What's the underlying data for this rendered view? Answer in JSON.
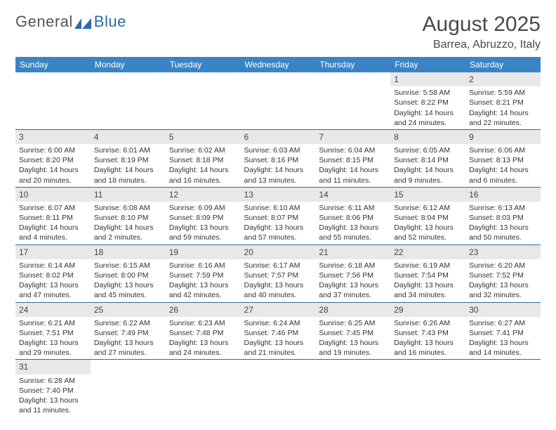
{
  "logo": {
    "general": "General",
    "blue": "Blue"
  },
  "title": "August 2025",
  "location": "Barrea, Abruzzo, Italy",
  "daysOfWeek": [
    "Sunday",
    "Monday",
    "Tuesday",
    "Wednesday",
    "Thursday",
    "Friday",
    "Saturday"
  ],
  "colors": {
    "header_bg": "#3b84c4",
    "header_text": "#ffffff",
    "daynum_bg": "#e8e8e8",
    "border": "#2a6ca8",
    "title_color": "#4a4a4a",
    "logo_gray": "#555555",
    "logo_blue": "#2a6ca8"
  },
  "weeks": [
    [
      null,
      null,
      null,
      null,
      null,
      {
        "n": "1",
        "sr": "Sunrise: 5:58 AM",
        "ss": "Sunset: 8:22 PM",
        "d1": "Daylight: 14 hours",
        "d2": "and 24 minutes."
      },
      {
        "n": "2",
        "sr": "Sunrise: 5:59 AM",
        "ss": "Sunset: 8:21 PM",
        "d1": "Daylight: 14 hours",
        "d2": "and 22 minutes."
      }
    ],
    [
      {
        "n": "3",
        "sr": "Sunrise: 6:00 AM",
        "ss": "Sunset: 8:20 PM",
        "d1": "Daylight: 14 hours",
        "d2": "and 20 minutes."
      },
      {
        "n": "4",
        "sr": "Sunrise: 6:01 AM",
        "ss": "Sunset: 8:19 PM",
        "d1": "Daylight: 14 hours",
        "d2": "and 18 minutes."
      },
      {
        "n": "5",
        "sr": "Sunrise: 6:02 AM",
        "ss": "Sunset: 8:18 PM",
        "d1": "Daylight: 14 hours",
        "d2": "and 16 minutes."
      },
      {
        "n": "6",
        "sr": "Sunrise: 6:03 AM",
        "ss": "Sunset: 8:16 PM",
        "d1": "Daylight: 14 hours",
        "d2": "and 13 minutes."
      },
      {
        "n": "7",
        "sr": "Sunrise: 6:04 AM",
        "ss": "Sunset: 8:15 PM",
        "d1": "Daylight: 14 hours",
        "d2": "and 11 minutes."
      },
      {
        "n": "8",
        "sr": "Sunrise: 6:05 AM",
        "ss": "Sunset: 8:14 PM",
        "d1": "Daylight: 14 hours",
        "d2": "and 9 minutes."
      },
      {
        "n": "9",
        "sr": "Sunrise: 6:06 AM",
        "ss": "Sunset: 8:13 PM",
        "d1": "Daylight: 14 hours",
        "d2": "and 6 minutes."
      }
    ],
    [
      {
        "n": "10",
        "sr": "Sunrise: 6:07 AM",
        "ss": "Sunset: 8:11 PM",
        "d1": "Daylight: 14 hours",
        "d2": "and 4 minutes."
      },
      {
        "n": "11",
        "sr": "Sunrise: 6:08 AM",
        "ss": "Sunset: 8:10 PM",
        "d1": "Daylight: 14 hours",
        "d2": "and 2 minutes."
      },
      {
        "n": "12",
        "sr": "Sunrise: 6:09 AM",
        "ss": "Sunset: 8:09 PM",
        "d1": "Daylight: 13 hours",
        "d2": "and 59 minutes."
      },
      {
        "n": "13",
        "sr": "Sunrise: 6:10 AM",
        "ss": "Sunset: 8:07 PM",
        "d1": "Daylight: 13 hours",
        "d2": "and 57 minutes."
      },
      {
        "n": "14",
        "sr": "Sunrise: 6:11 AM",
        "ss": "Sunset: 8:06 PM",
        "d1": "Daylight: 13 hours",
        "d2": "and 55 minutes."
      },
      {
        "n": "15",
        "sr": "Sunrise: 6:12 AM",
        "ss": "Sunset: 8:04 PM",
        "d1": "Daylight: 13 hours",
        "d2": "and 52 minutes."
      },
      {
        "n": "16",
        "sr": "Sunrise: 6:13 AM",
        "ss": "Sunset: 8:03 PM",
        "d1": "Daylight: 13 hours",
        "d2": "and 50 minutes."
      }
    ],
    [
      {
        "n": "17",
        "sr": "Sunrise: 6:14 AM",
        "ss": "Sunset: 8:02 PM",
        "d1": "Daylight: 13 hours",
        "d2": "and 47 minutes."
      },
      {
        "n": "18",
        "sr": "Sunrise: 6:15 AM",
        "ss": "Sunset: 8:00 PM",
        "d1": "Daylight: 13 hours",
        "d2": "and 45 minutes."
      },
      {
        "n": "19",
        "sr": "Sunrise: 6:16 AM",
        "ss": "Sunset: 7:59 PM",
        "d1": "Daylight: 13 hours",
        "d2": "and 42 minutes."
      },
      {
        "n": "20",
        "sr": "Sunrise: 6:17 AM",
        "ss": "Sunset: 7:57 PM",
        "d1": "Daylight: 13 hours",
        "d2": "and 40 minutes."
      },
      {
        "n": "21",
        "sr": "Sunrise: 6:18 AM",
        "ss": "Sunset: 7:56 PM",
        "d1": "Daylight: 13 hours",
        "d2": "and 37 minutes."
      },
      {
        "n": "22",
        "sr": "Sunrise: 6:19 AM",
        "ss": "Sunset: 7:54 PM",
        "d1": "Daylight: 13 hours",
        "d2": "and 34 minutes."
      },
      {
        "n": "23",
        "sr": "Sunrise: 6:20 AM",
        "ss": "Sunset: 7:52 PM",
        "d1": "Daylight: 13 hours",
        "d2": "and 32 minutes."
      }
    ],
    [
      {
        "n": "24",
        "sr": "Sunrise: 6:21 AM",
        "ss": "Sunset: 7:51 PM",
        "d1": "Daylight: 13 hours",
        "d2": "and 29 minutes."
      },
      {
        "n": "25",
        "sr": "Sunrise: 6:22 AM",
        "ss": "Sunset: 7:49 PM",
        "d1": "Daylight: 13 hours",
        "d2": "and 27 minutes."
      },
      {
        "n": "26",
        "sr": "Sunrise: 6:23 AM",
        "ss": "Sunset: 7:48 PM",
        "d1": "Daylight: 13 hours",
        "d2": "and 24 minutes."
      },
      {
        "n": "27",
        "sr": "Sunrise: 6:24 AM",
        "ss": "Sunset: 7:46 PM",
        "d1": "Daylight: 13 hours",
        "d2": "and 21 minutes."
      },
      {
        "n": "28",
        "sr": "Sunrise: 6:25 AM",
        "ss": "Sunset: 7:45 PM",
        "d1": "Daylight: 13 hours",
        "d2": "and 19 minutes."
      },
      {
        "n": "29",
        "sr": "Sunrise: 6:26 AM",
        "ss": "Sunset: 7:43 PM",
        "d1": "Daylight: 13 hours",
        "d2": "and 16 minutes."
      },
      {
        "n": "30",
        "sr": "Sunrise: 6:27 AM",
        "ss": "Sunset: 7:41 PM",
        "d1": "Daylight: 13 hours",
        "d2": "and 14 minutes."
      }
    ],
    [
      {
        "n": "31",
        "sr": "Sunrise: 6:28 AM",
        "ss": "Sunset: 7:40 PM",
        "d1": "Daylight: 13 hours",
        "d2": "and 11 minutes."
      },
      null,
      null,
      null,
      null,
      null,
      null
    ]
  ]
}
